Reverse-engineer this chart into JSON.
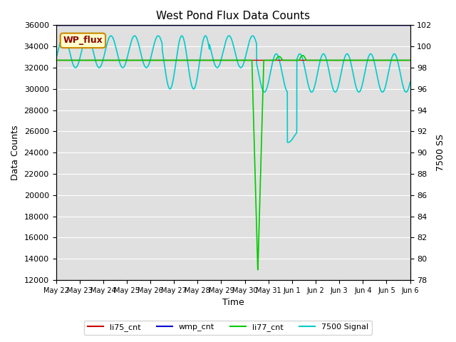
{
  "title": "West Pond Flux Data Counts",
  "xlabel": "Time",
  "ylabel_left": "Data Counts",
  "ylabel_right": "7500 SS",
  "ylim_left": [
    12000,
    36000
  ],
  "ylim_right": [
    78,
    102
  ],
  "yticks_left": [
    12000,
    14000,
    16000,
    18000,
    20000,
    22000,
    24000,
    26000,
    28000,
    30000,
    32000,
    34000,
    36000
  ],
  "yticks_right": [
    78,
    80,
    82,
    84,
    86,
    88,
    90,
    92,
    94,
    96,
    98,
    100,
    102
  ],
  "bg_color": "#e0e0e0",
  "annotation_text": "WP_flux",
  "annotation_bg": "#ffffcc",
  "annotation_border": "#cc8800",
  "legend_colors": [
    "#cc0000",
    "#0000cc",
    "#00cc00",
    "#00cccc"
  ],
  "wmp_cnt_value": 36000,
  "li75_cnt_value": 32700,
  "li77_cnt_base": 32700,
  "n_days": 15,
  "x_tick_labels": [
    "May 22",
    "May 23",
    "May 24",
    "May 25",
    "May 26",
    "May 27",
    "May 28",
    "May 29",
    "May 30",
    "May 31",
    "Jun 1",
    "Jun 2",
    "Jun 3",
    "Jun 4",
    "Jun 5",
    "Jun 6"
  ]
}
